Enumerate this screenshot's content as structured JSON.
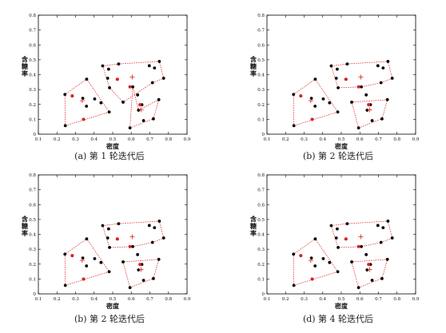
{
  "figure": {
    "panels": [
      {
        "caption": "(a) 第 1 轮迭代后"
      },
      {
        "caption": "(b) 第 2 轮迭代后"
      },
      {
        "caption": "(b) 第 2 轮迭代后"
      },
      {
        "caption": "(d) 第 4 轮迭代后"
      }
    ]
  },
  "chart_data": [
    {
      "type": "scatter",
      "xlabel": "密度",
      "ylabel": "含糖率",
      "xlim": [
        0.1,
        0.9
      ],
      "ylim": [
        0,
        0.8
      ],
      "xticks": [
        "0.1",
        "0.2",
        "0.3",
        "0.4",
        "0.5",
        "0.6",
        "0.7",
        "0.8",
        "0.9"
      ],
      "yticks": [
        "0",
        "0.1",
        "0.2",
        "0.3",
        "0.4",
        "0.5",
        "0.6",
        "0.7",
        "0.8"
      ],
      "grid": false,
      "colors": {
        "point": "#000000",
        "prototype": "#e02020",
        "mean": "#e02020",
        "boundary": "#e02020"
      },
      "points": [
        [
          0.697,
          0.46
        ],
        [
          0.774,
          0.376
        ],
        [
          0.634,
          0.264
        ],
        [
          0.608,
          0.318
        ],
        [
          0.556,
          0.215
        ],
        [
          0.403,
          0.237
        ],
        [
          0.481,
          0.149
        ],
        [
          0.437,
          0.211
        ],
        [
          0.666,
          0.091
        ],
        [
          0.243,
          0.267
        ],
        [
          0.245,
          0.057
        ],
        [
          0.343,
          0.099
        ],
        [
          0.639,
          0.161
        ],
        [
          0.657,
          0.198
        ],
        [
          0.36,
          0.37
        ],
        [
          0.593,
          0.042
        ],
        [
          0.719,
          0.103
        ],
        [
          0.359,
          0.188
        ],
        [
          0.339,
          0.241
        ],
        [
          0.282,
          0.257
        ],
        [
          0.748,
          0.232
        ],
        [
          0.714,
          0.346
        ],
        [
          0.483,
          0.312
        ],
        [
          0.478,
          0.437
        ],
        [
          0.525,
          0.369
        ],
        [
          0.751,
          0.489
        ],
        [
          0.532,
          0.472
        ],
        [
          0.473,
          0.376
        ],
        [
          0.725,
          0.445
        ],
        [
          0.446,
          0.459
        ]
      ],
      "prototypes": [
        [
          0.282,
          0.257
        ],
        [
          0.343,
          0.099
        ],
        [
          0.525,
          0.369
        ],
        [
          0.593,
          0.318
        ],
        [
          0.647,
          0.198
        ]
      ],
      "means": [
        [
          0.336,
          0.225
        ],
        [
          0.605,
          0.384
        ],
        [
          0.653,
          0.164
        ]
      ],
      "clusters": [
        [
          [
            0.245,
            0.057
          ],
          [
            0.481,
            0.149
          ],
          [
            0.36,
            0.37
          ],
          [
            0.243,
            0.267
          ]
        ],
        [
          [
            0.446,
            0.459
          ],
          [
            0.532,
            0.472
          ],
          [
            0.751,
            0.489
          ],
          [
            0.774,
            0.376
          ],
          [
            0.714,
            0.346
          ],
          [
            0.556,
            0.215
          ],
          [
            0.483,
            0.312
          ]
        ],
        [
          [
            0.593,
            0.042
          ],
          [
            0.719,
            0.103
          ],
          [
            0.748,
            0.232
          ],
          [
            0.639,
            0.161
          ],
          [
            0.608,
            0.318
          ]
        ]
      ]
    },
    {
      "type": "scatter",
      "xlabel": "密度",
      "ylabel": "含糖率",
      "xlim": [
        0.1,
        0.9
      ],
      "ylim": [
        0,
        0.8
      ],
      "xticks": [
        "0.1",
        "0.2",
        "0.3",
        "0.4",
        "0.5",
        "0.6",
        "0.7",
        "0.8",
        "0.9"
      ],
      "yticks": [
        "0",
        "0.1",
        "0.2",
        "0.3",
        "0.4",
        "0.5",
        "0.6",
        "0.7",
        "0.8"
      ],
      "grid": false,
      "colors": {
        "point": "#000000",
        "prototype": "#e02020",
        "mean": "#e02020",
        "boundary": "#e02020"
      },
      "points": [
        [
          0.697,
          0.46
        ],
        [
          0.774,
          0.376
        ],
        [
          0.634,
          0.264
        ],
        [
          0.608,
          0.318
        ],
        [
          0.556,
          0.215
        ],
        [
          0.403,
          0.237
        ],
        [
          0.481,
          0.149
        ],
        [
          0.437,
          0.211
        ],
        [
          0.666,
          0.091
        ],
        [
          0.243,
          0.267
        ],
        [
          0.245,
          0.057
        ],
        [
          0.343,
          0.099
        ],
        [
          0.639,
          0.161
        ],
        [
          0.657,
          0.198
        ],
        [
          0.36,
          0.37
        ],
        [
          0.593,
          0.042
        ],
        [
          0.719,
          0.103
        ],
        [
          0.359,
          0.188
        ],
        [
          0.339,
          0.241
        ],
        [
          0.282,
          0.257
        ],
        [
          0.748,
          0.232
        ],
        [
          0.714,
          0.346
        ],
        [
          0.483,
          0.312
        ],
        [
          0.478,
          0.437
        ],
        [
          0.525,
          0.369
        ],
        [
          0.751,
          0.489
        ],
        [
          0.532,
          0.472
        ],
        [
          0.473,
          0.376
        ],
        [
          0.725,
          0.445
        ],
        [
          0.446,
          0.459
        ]
      ],
      "prototypes": [
        [
          0.282,
          0.257
        ],
        [
          0.343,
          0.099
        ],
        [
          0.525,
          0.369
        ],
        [
          0.593,
          0.318
        ],
        [
          0.647,
          0.198
        ]
      ],
      "means": [
        [
          0.336,
          0.225
        ],
        [
          0.605,
          0.384
        ],
        [
          0.653,
          0.164
        ]
      ],
      "clusters": [
        [
          [
            0.245,
            0.057
          ],
          [
            0.481,
            0.149
          ],
          [
            0.36,
            0.37
          ],
          [
            0.243,
            0.267
          ]
        ],
        [
          [
            0.446,
            0.459
          ],
          [
            0.532,
            0.472
          ],
          [
            0.751,
            0.489
          ],
          [
            0.774,
            0.376
          ],
          [
            0.714,
            0.346
          ],
          [
            0.608,
            0.318
          ],
          [
            0.483,
            0.312
          ]
        ],
        [
          [
            0.593,
            0.042
          ],
          [
            0.719,
            0.103
          ],
          [
            0.748,
            0.232
          ],
          [
            0.556,
            0.215
          ]
        ]
      ]
    },
    {
      "type": "scatter",
      "xlabel": "密度",
      "ylabel": "含糖率",
      "xlim": [
        0.1,
        0.9
      ],
      "ylim": [
        0,
        0.8
      ],
      "xticks": [
        "0.1",
        "0.2",
        "0.3",
        "0.4",
        "0.5",
        "0.6",
        "0.7",
        "0.8",
        "0.9"
      ],
      "yticks": [
        "0",
        "0.1",
        "0.2",
        "0.3",
        "0.4",
        "0.5",
        "0.6",
        "0.7",
        "0.8"
      ],
      "grid": false,
      "colors": {
        "point": "#000000",
        "prototype": "#e02020",
        "mean": "#e02020",
        "boundary": "#e02020"
      },
      "points": [
        [
          0.697,
          0.46
        ],
        [
          0.774,
          0.376
        ],
        [
          0.634,
          0.264
        ],
        [
          0.608,
          0.318
        ],
        [
          0.556,
          0.215
        ],
        [
          0.403,
          0.237
        ],
        [
          0.481,
          0.149
        ],
        [
          0.437,
          0.211
        ],
        [
          0.666,
          0.091
        ],
        [
          0.243,
          0.267
        ],
        [
          0.245,
          0.057
        ],
        [
          0.343,
          0.099
        ],
        [
          0.639,
          0.161
        ],
        [
          0.657,
          0.198
        ],
        [
          0.36,
          0.37
        ],
        [
          0.593,
          0.042
        ],
        [
          0.719,
          0.103
        ],
        [
          0.359,
          0.188
        ],
        [
          0.339,
          0.241
        ],
        [
          0.282,
          0.257
        ],
        [
          0.748,
          0.232
        ],
        [
          0.714,
          0.346
        ],
        [
          0.483,
          0.312
        ],
        [
          0.478,
          0.437
        ],
        [
          0.525,
          0.369
        ],
        [
          0.751,
          0.489
        ],
        [
          0.532,
          0.472
        ],
        [
          0.473,
          0.376
        ],
        [
          0.725,
          0.445
        ],
        [
          0.446,
          0.459
        ]
      ],
      "prototypes": [
        [
          0.282,
          0.257
        ],
        [
          0.343,
          0.099
        ],
        [
          0.525,
          0.369
        ],
        [
          0.593,
          0.318
        ],
        [
          0.647,
          0.198
        ]
      ],
      "means": [
        [
          0.336,
          0.225
        ],
        [
          0.605,
          0.384
        ],
        [
          0.653,
          0.164
        ]
      ],
      "clusters": [
        [
          [
            0.245,
            0.057
          ],
          [
            0.481,
            0.149
          ],
          [
            0.36,
            0.37
          ],
          [
            0.243,
            0.267
          ]
        ],
        [
          [
            0.446,
            0.459
          ],
          [
            0.532,
            0.472
          ],
          [
            0.751,
            0.489
          ],
          [
            0.774,
            0.376
          ],
          [
            0.714,
            0.346
          ],
          [
            0.608,
            0.318
          ],
          [
            0.483,
            0.312
          ]
        ],
        [
          [
            0.593,
            0.042
          ],
          [
            0.719,
            0.103
          ],
          [
            0.748,
            0.232
          ],
          [
            0.556,
            0.215
          ]
        ]
      ]
    },
    {
      "type": "scatter",
      "xlabel": "密度",
      "ylabel": "含糖率",
      "xlim": [
        0.1,
        0.9
      ],
      "ylim": [
        0,
        0.8
      ],
      "xticks": [
        "0.1",
        "0.2",
        "0.3",
        "0.4",
        "0.5",
        "0.6",
        "0.7",
        "0.8",
        "0.9"
      ],
      "yticks": [
        "0",
        "0.1",
        "0.2",
        "0.3",
        "0.4",
        "0.5",
        "0.6",
        "0.7",
        "0.8"
      ],
      "grid": false,
      "colors": {
        "point": "#000000",
        "prototype": "#e02020",
        "mean": "#e02020",
        "boundary": "#e02020"
      },
      "points": [
        [
          0.697,
          0.46
        ],
        [
          0.774,
          0.376
        ],
        [
          0.634,
          0.264
        ],
        [
          0.608,
          0.318
        ],
        [
          0.556,
          0.215
        ],
        [
          0.403,
          0.237
        ],
        [
          0.481,
          0.149
        ],
        [
          0.437,
          0.211
        ],
        [
          0.666,
          0.091
        ],
        [
          0.243,
          0.267
        ],
        [
          0.245,
          0.057
        ],
        [
          0.343,
          0.099
        ],
        [
          0.639,
          0.161
        ],
        [
          0.657,
          0.198
        ],
        [
          0.36,
          0.37
        ],
        [
          0.593,
          0.042
        ],
        [
          0.719,
          0.103
        ],
        [
          0.359,
          0.188
        ],
        [
          0.339,
          0.241
        ],
        [
          0.282,
          0.257
        ],
        [
          0.748,
          0.232
        ],
        [
          0.714,
          0.346
        ],
        [
          0.483,
          0.312
        ],
        [
          0.478,
          0.437
        ],
        [
          0.525,
          0.369
        ],
        [
          0.751,
          0.489
        ],
        [
          0.532,
          0.472
        ],
        [
          0.473,
          0.376
        ],
        [
          0.725,
          0.445
        ],
        [
          0.446,
          0.459
        ]
      ],
      "prototypes": [
        [
          0.282,
          0.257
        ],
        [
          0.343,
          0.099
        ],
        [
          0.525,
          0.369
        ],
        [
          0.593,
          0.318
        ],
        [
          0.647,
          0.198
        ]
      ],
      "means": [
        [
          0.336,
          0.225
        ],
        [
          0.605,
          0.384
        ],
        [
          0.653,
          0.164
        ]
      ],
      "clusters": [
        [
          [
            0.245,
            0.057
          ],
          [
            0.481,
            0.149
          ],
          [
            0.36,
            0.37
          ],
          [
            0.243,
            0.267
          ]
        ],
        [
          [
            0.446,
            0.459
          ],
          [
            0.532,
            0.472
          ],
          [
            0.751,
            0.489
          ],
          [
            0.774,
            0.376
          ],
          [
            0.714,
            0.346
          ],
          [
            0.608,
            0.318
          ],
          [
            0.483,
            0.312
          ]
        ],
        [
          [
            0.593,
            0.042
          ],
          [
            0.719,
            0.103
          ],
          [
            0.748,
            0.232
          ],
          [
            0.556,
            0.215
          ]
        ]
      ]
    }
  ]
}
